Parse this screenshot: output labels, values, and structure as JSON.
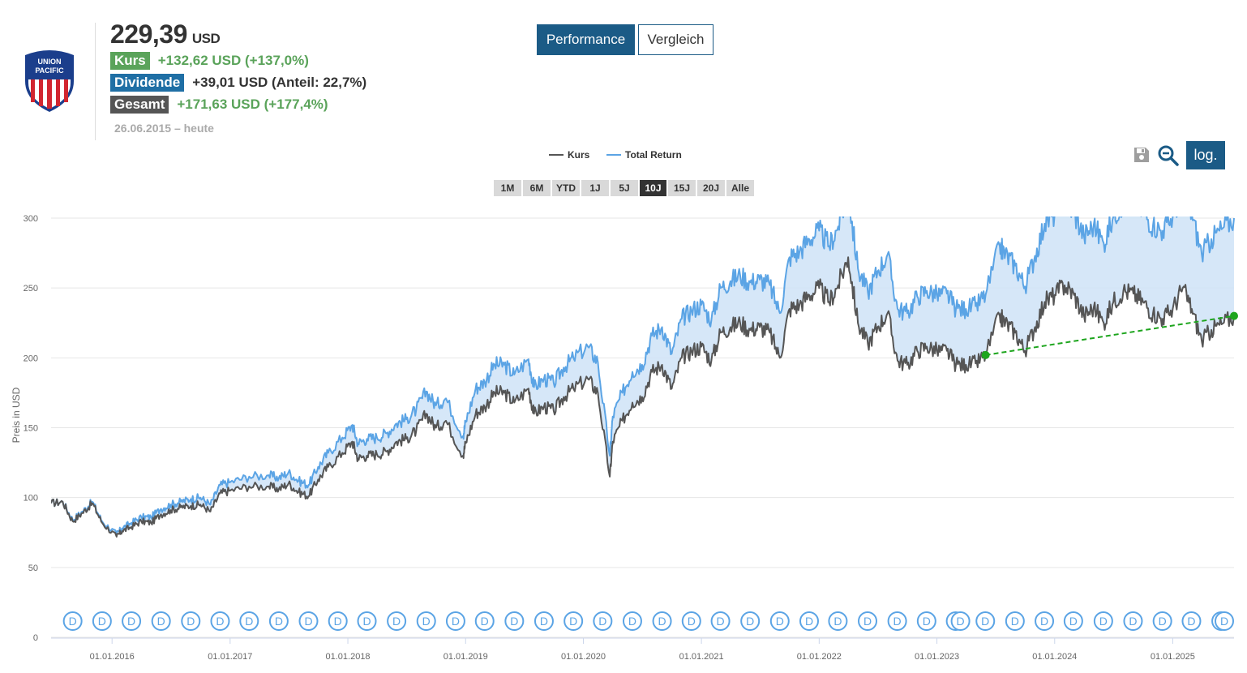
{
  "header": {
    "price": "229,39",
    "currency": "USD",
    "kurs": {
      "label": "Kurs",
      "value": "+132,62 USD (+137,0%)"
    },
    "dividende": {
      "label": "Dividende",
      "value": "+39,01 USD (Anteil: 22,7%)"
    },
    "gesamt": {
      "label": "Gesamt",
      "value": "+171,63 USD (+177,4%)"
    },
    "period": "26.06.2015 – heute"
  },
  "logo": {
    "line1": "UNION",
    "line2": "PACIFIC"
  },
  "tabs": {
    "performance": "Performance",
    "vergleich": "Vergleich"
  },
  "toolbar": {
    "log_label": "log.",
    "save_icon": "save-icon",
    "zoom_icon": "zoom-out-icon"
  },
  "legend": {
    "kurs": "Kurs",
    "total_return": "Total Return"
  },
  "ranges": [
    {
      "label": "1M",
      "active": false
    },
    {
      "label": "6M",
      "active": false
    },
    {
      "label": "YTD",
      "active": false
    },
    {
      "label": "1J",
      "active": false
    },
    {
      "label": "5J",
      "active": false
    },
    {
      "label": "10J",
      "active": true
    },
    {
      "label": "15J",
      "active": false
    },
    {
      "label": "20J",
      "active": false
    },
    {
      "label": "Alle",
      "active": false
    }
  ],
  "colors": {
    "kurs": "#555555",
    "total_return": "#5ba4e5",
    "fill": "#cfe3f7",
    "trend": "#1ea51e",
    "accent": "#1b5b86",
    "dividend_marker": "#5ba4e5"
  },
  "chart_data": {
    "type": "line",
    "ylabel": "Preis in USD",
    "ylim": [
      0,
      300
    ],
    "yticks": [
      0,
      50,
      100,
      150,
      200,
      250,
      300
    ],
    "xlim": [
      "2015-06-26",
      "2025-07-10"
    ],
    "xticks": [
      "01.01.2016",
      "01.01.2017",
      "01.01.2018",
      "01.01.2019",
      "01.01.2020",
      "01.01.2021",
      "01.01.2022",
      "01.01.2023",
      "01.01.2024",
      "01.01.2025"
    ],
    "grid": true,
    "legend_position": "top-center",
    "series": [
      {
        "name": "Kurs",
        "points": [
          [
            "2015-06-26",
            96
          ],
          [
            "2015-08-01",
            97
          ],
          [
            "2015-09-01",
            83
          ],
          [
            "2015-10-01",
            89
          ],
          [
            "2015-11-01",
            96
          ],
          [
            "2015-12-01",
            82
          ],
          [
            "2016-01-15",
            72
          ],
          [
            "2016-02-01",
            76
          ],
          [
            "2016-03-01",
            79
          ],
          [
            "2016-04-01",
            83
          ],
          [
            "2016-05-01",
            82
          ],
          [
            "2016-06-01",
            88
          ],
          [
            "2016-07-01",
            91
          ],
          [
            "2016-08-01",
            93
          ],
          [
            "2016-09-01",
            94
          ],
          [
            "2016-10-01",
            95
          ],
          [
            "2016-11-01",
            90
          ],
          [
            "2016-12-01",
            103
          ],
          [
            "2017-01-01",
            105
          ],
          [
            "2017-03-01",
            108
          ],
          [
            "2017-05-01",
            108
          ],
          [
            "2017-06-01",
            106
          ],
          [
            "2017-07-01",
            110
          ],
          [
            "2017-08-01",
            104
          ],
          [
            "2017-09-01",
            101
          ],
          [
            "2017-10-01",
            113
          ],
          [
            "2017-11-01",
            122
          ],
          [
            "2017-12-15",
            132
          ],
          [
            "2018-01-15",
            140
          ],
          [
            "2018-02-01",
            128
          ],
          [
            "2018-03-01",
            130
          ],
          [
            "2018-04-01",
            131
          ],
          [
            "2018-05-01",
            133
          ],
          [
            "2018-06-01",
            140
          ],
          [
            "2018-07-01",
            142
          ],
          [
            "2018-08-01",
            148
          ],
          [
            "2018-09-01",
            160
          ],
          [
            "2018-10-01",
            150
          ],
          [
            "2018-11-01",
            155
          ],
          [
            "2018-12-24",
            130
          ],
          [
            "2019-01-01",
            139
          ],
          [
            "2019-02-01",
            160
          ],
          [
            "2019-03-01",
            165
          ],
          [
            "2019-04-01",
            175
          ],
          [
            "2019-05-01",
            175
          ],
          [
            "2019-06-01",
            168
          ],
          [
            "2019-07-15",
            178
          ],
          [
            "2019-08-01",
            160
          ],
          [
            "2019-09-01",
            165
          ],
          [
            "2019-10-01",
            162
          ],
          [
            "2019-11-01",
            172
          ],
          [
            "2019-12-01",
            178
          ],
          [
            "2020-01-15",
            185
          ],
          [
            "2020-02-15",
            175
          ],
          [
            "2020-03-23",
            115
          ],
          [
            "2020-04-01",
            140
          ],
          [
            "2020-05-01",
            155
          ],
          [
            "2020-06-01",
            168
          ],
          [
            "2020-07-01",
            172
          ],
          [
            "2020-08-01",
            190
          ],
          [
            "2020-09-01",
            195
          ],
          [
            "2020-10-01",
            178
          ],
          [
            "2020-11-01",
            200
          ],
          [
            "2020-12-01",
            205
          ],
          [
            "2021-01-01",
            208
          ],
          [
            "2021-02-01",
            198
          ],
          [
            "2021-03-01",
            218
          ],
          [
            "2021-04-01",
            222
          ],
          [
            "2021-05-01",
            225
          ],
          [
            "2021-06-01",
            220
          ],
          [
            "2021-07-01",
            222
          ],
          [
            "2021-08-01",
            218
          ],
          [
            "2021-09-01",
            200
          ],
          [
            "2021-10-01",
            235
          ],
          [
            "2021-11-01",
            238
          ],
          [
            "2021-12-01",
            245
          ],
          [
            "2022-01-01",
            250
          ],
          [
            "2022-02-01",
            240
          ],
          [
            "2022-03-01",
            252
          ],
          [
            "2022-04-01",
            272
          ],
          [
            "2022-05-01",
            225
          ],
          [
            "2022-06-01",
            210
          ],
          [
            "2022-07-01",
            222
          ],
          [
            "2022-08-01",
            232
          ],
          [
            "2022-09-01",
            198
          ],
          [
            "2022-10-01",
            195
          ],
          [
            "2022-11-01",
            205
          ],
          [
            "2022-12-01",
            208
          ],
          [
            "2023-01-01",
            205
          ],
          [
            "2023-02-01",
            205
          ],
          [
            "2023-03-01",
            195
          ],
          [
            "2023-04-01",
            195
          ],
          [
            "2023-05-01",
            196
          ],
          [
            "2023-06-01",
            202
          ],
          [
            "2023-07-15",
            230
          ],
          [
            "2023-08-01",
            225
          ],
          [
            "2023-09-01",
            218
          ],
          [
            "2023-10-01",
            205
          ],
          [
            "2023-11-01",
            222
          ],
          [
            "2023-12-01",
            240
          ],
          [
            "2024-01-01",
            245
          ],
          [
            "2024-02-01",
            252
          ],
          [
            "2024-03-01",
            245
          ],
          [
            "2024-04-01",
            230
          ],
          [
            "2024-05-01",
            236
          ],
          [
            "2024-06-01",
            225
          ],
          [
            "2024-07-01",
            240
          ],
          [
            "2024-08-01",
            248
          ],
          [
            "2024-09-01",
            246
          ],
          [
            "2024-10-01",
            240
          ],
          [
            "2024-11-01",
            232
          ],
          [
            "2024-12-01",
            228
          ],
          [
            "2025-01-01",
            235
          ],
          [
            "2025-02-01",
            250
          ],
          [
            "2025-03-01",
            235
          ],
          [
            "2025-04-01",
            212
          ],
          [
            "2025-05-01",
            220
          ],
          [
            "2025-06-01",
            224
          ],
          [
            "2025-07-10",
            230
          ]
        ]
      },
      {
        "name": "Total Return",
        "points": [
          [
            "2015-06-26",
            96
          ],
          [
            "2015-08-01",
            97
          ],
          [
            "2015-09-01",
            84
          ],
          [
            "2015-10-01",
            90
          ],
          [
            "2015-11-01",
            97
          ],
          [
            "2015-12-01",
            83
          ],
          [
            "2016-01-15",
            74
          ],
          [
            "2016-02-01",
            78
          ],
          [
            "2016-03-01",
            82
          ],
          [
            "2016-04-01",
            86
          ],
          [
            "2016-05-01",
            86
          ],
          [
            "2016-06-01",
            92
          ],
          [
            "2016-07-01",
            95
          ],
          [
            "2016-08-01",
            97
          ],
          [
            "2016-09-01",
            99
          ],
          [
            "2016-10-01",
            100
          ],
          [
            "2016-11-01",
            95
          ],
          [
            "2016-12-01",
            109
          ],
          [
            "2017-01-01",
            111
          ],
          [
            "2017-03-01",
            115
          ],
          [
            "2017-05-01",
            116
          ],
          [
            "2017-06-01",
            114
          ],
          [
            "2017-07-01",
            118
          ],
          [
            "2017-08-01",
            112
          ],
          [
            "2017-09-01",
            109
          ],
          [
            "2017-10-01",
            122
          ],
          [
            "2017-11-01",
            132
          ],
          [
            "2017-12-15",
            143
          ],
          [
            "2018-01-15",
            152
          ],
          [
            "2018-02-01",
            139
          ],
          [
            "2018-03-01",
            142
          ],
          [
            "2018-04-01",
            143
          ],
          [
            "2018-05-01",
            146
          ],
          [
            "2018-06-01",
            153
          ],
          [
            "2018-07-01",
            156
          ],
          [
            "2018-08-01",
            163
          ],
          [
            "2018-09-01",
            176
          ],
          [
            "2018-10-01",
            166
          ],
          [
            "2018-11-01",
            171
          ],
          [
            "2018-12-24",
            144
          ],
          [
            "2019-01-01",
            154
          ],
          [
            "2019-02-01",
            178
          ],
          [
            "2019-03-01",
            183
          ],
          [
            "2019-04-01",
            195
          ],
          [
            "2019-05-01",
            195
          ],
          [
            "2019-06-01",
            188
          ],
          [
            "2019-07-15",
            199
          ],
          [
            "2019-08-01",
            179
          ],
          [
            "2019-09-01",
            185
          ],
          [
            "2019-10-01",
            182
          ],
          [
            "2019-11-01",
            193
          ],
          [
            "2019-12-01",
            200
          ],
          [
            "2020-01-15",
            208
          ],
          [
            "2020-02-15",
            197
          ],
          [
            "2020-03-23",
            130
          ],
          [
            "2020-04-01",
            158
          ],
          [
            "2020-05-01",
            175
          ],
          [
            "2020-06-01",
            190
          ],
          [
            "2020-07-01",
            195
          ],
          [
            "2020-08-01",
            216
          ],
          [
            "2020-09-01",
            222
          ],
          [
            "2020-10-01",
            203
          ],
          [
            "2020-11-01",
            228
          ],
          [
            "2020-12-01",
            234
          ],
          [
            "2021-01-01",
            238
          ],
          [
            "2021-02-01",
            227
          ],
          [
            "2021-03-01",
            250
          ],
          [
            "2021-04-01",
            255
          ],
          [
            "2021-05-01",
            259
          ],
          [
            "2021-06-01",
            254
          ],
          [
            "2021-07-01",
            256
          ],
          [
            "2021-08-01",
            252
          ],
          [
            "2021-09-01",
            232
          ],
          [
            "2021-10-01",
            272
          ],
          [
            "2021-11-01",
            276
          ],
          [
            "2021-12-01",
            285
          ],
          [
            "2022-01-01",
            291
          ],
          [
            "2022-02-01",
            280
          ],
          [
            "2022-03-01",
            294
          ],
          [
            "2022-04-01",
            318
          ],
          [
            "2022-05-01",
            264
          ],
          [
            "2022-06-01",
            247
          ],
          [
            "2022-07-01",
            262
          ],
          [
            "2022-08-01",
            274
          ],
          [
            "2022-09-01",
            235
          ],
          [
            "2022-10-01",
            232
          ],
          [
            "2022-11-01",
            244
          ],
          [
            "2022-12-01",
            248
          ],
          [
            "2023-01-01",
            245
          ],
          [
            "2023-02-01",
            246
          ],
          [
            "2023-03-01",
            235
          ],
          [
            "2023-04-01",
            235
          ],
          [
            "2023-05-01",
            237
          ],
          [
            "2023-06-01",
            245
          ],
          [
            "2023-07-15",
            280
          ],
          [
            "2023-08-01",
            274
          ],
          [
            "2023-09-01",
            266
          ],
          [
            "2023-10-01",
            251
          ],
          [
            "2023-11-01",
            273
          ],
          [
            "2023-12-01",
            296
          ],
          [
            "2024-01-01",
            303
          ],
          [
            "2024-02-01",
            312
          ],
          [
            "2024-03-01",
            304
          ],
          [
            "2024-04-01",
            287
          ],
          [
            "2024-05-01",
            295
          ],
          [
            "2024-06-01",
            282
          ],
          [
            "2024-07-01",
            301
          ],
          [
            "2024-08-01",
            312
          ],
          [
            "2024-09-01",
            311
          ],
          [
            "2024-10-01",
            304
          ],
          [
            "2024-11-01",
            295
          ],
          [
            "2024-12-01",
            291
          ],
          [
            "2025-01-01",
            301
          ],
          [
            "2025-02-01",
            321
          ],
          [
            "2025-03-01",
            303
          ],
          [
            "2025-04-01",
            274
          ],
          [
            "2025-05-01",
            285
          ],
          [
            "2025-06-01",
            292
          ],
          [
            "2025-07-10",
            300
          ]
        ]
      }
    ],
    "trendline": {
      "from": [
        "2023-06-01",
        202
      ],
      "to": [
        "2025-07-10",
        230
      ]
    },
    "dividend_markers": {
      "label": "D",
      "dates": [
        "2015-09-01",
        "2015-12-01",
        "2016-03-01",
        "2016-06-01",
        "2016-09-01",
        "2016-12-01",
        "2017-03-01",
        "2017-06-01",
        "2017-09-01",
        "2017-12-01",
        "2018-03-01",
        "2018-06-01",
        "2018-09-01",
        "2018-12-01",
        "2019-03-01",
        "2019-06-01",
        "2019-09-01",
        "2019-12-01",
        "2020-03-01",
        "2020-06-01",
        "2020-09-01",
        "2020-12-01",
        "2021-03-01",
        "2021-06-01",
        "2021-09-01",
        "2021-12-01",
        "2022-02-28",
        "2022-05-31",
        "2022-08-31",
        "2022-11-30",
        "2023-02-28",
        "2023-03-15",
        "2023-05-31",
        "2023-08-31",
        "2023-11-30",
        "2024-02-28",
        "2024-05-31",
        "2024-08-31",
        "2024-11-30",
        "2025-02-28",
        "2025-05-31",
        "2025-08-31"
      ]
    }
  }
}
